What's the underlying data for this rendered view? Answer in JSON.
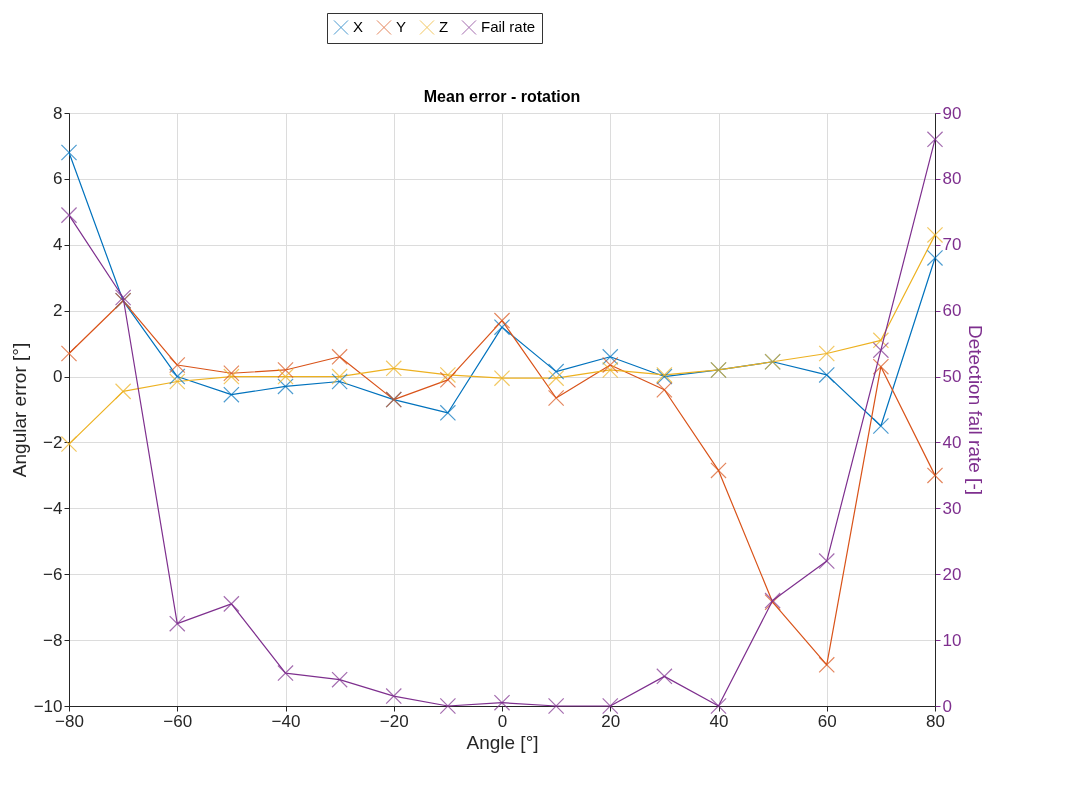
{
  "chart_data": {
    "type": "line",
    "title": "Mean error - rotation",
    "xlabel": "Angle [°]",
    "ylabel": "Angular error [°]",
    "y2label": "Detection fail rate [-]",
    "x": [
      -80,
      -70,
      -60,
      -50,
      -40,
      -30,
      -20,
      -10,
      0,
      10,
      20,
      30,
      40,
      50,
      60,
      70,
      80
    ],
    "series": [
      {
        "name": "X",
        "color": "#0072bd",
        "values": [
          6.8,
          2.3,
          0,
          -0.55,
          -0.3,
          -0.15,
          -0.7,
          -1.1,
          1.5,
          0.15,
          0.6,
          0,
          0.2,
          0.45,
          0.05,
          -1.5,
          3.6
        ]
      },
      {
        "name": "Y",
        "color": "#d95319",
        "values": [
          0.7,
          2.3,
          0.35,
          0.1,
          0.2,
          0.6,
          -0.7,
          -0.1,
          1.7,
          -0.65,
          0.35,
          -0.4,
          -2.85,
          -6.85,
          -8.75,
          0.3,
          -3.0
        ]
      },
      {
        "name": "Z",
        "color": "#edb120",
        "values": [
          -2.05,
          -0.45,
          -0.15,
          0,
          0,
          0,
          0.25,
          0.05,
          -0.05,
          -0.05,
          0.2,
          0.05,
          0.2,
          0.45,
          0.7,
          1.1,
          4.3
        ]
      },
      {
        "name": "Fail rate",
        "color": "#7e2f8e",
        "axis": "y2",
        "values": [
          74.5,
          62,
          12.5,
          15.5,
          5,
          4,
          1.5,
          0,
          0.5,
          0,
          0,
          4.5,
          0,
          16,
          22,
          54,
          86
        ]
      }
    ],
    "xlim": [
      -80,
      80
    ],
    "xticks": [
      -80,
      -60,
      -40,
      -20,
      0,
      20,
      40,
      60,
      80
    ],
    "ylim": [
      -10,
      8
    ],
    "yticks": [
      -10,
      -8,
      -6,
      -4,
      -2,
      0,
      2,
      4,
      6,
      8
    ],
    "y2lim": [
      0,
      90
    ],
    "y2ticks": [
      0,
      10,
      20,
      30,
      40,
      50,
      60,
      70,
      80,
      90
    ],
    "grid": true,
    "legend": "top",
    "marker": "cross"
  }
}
